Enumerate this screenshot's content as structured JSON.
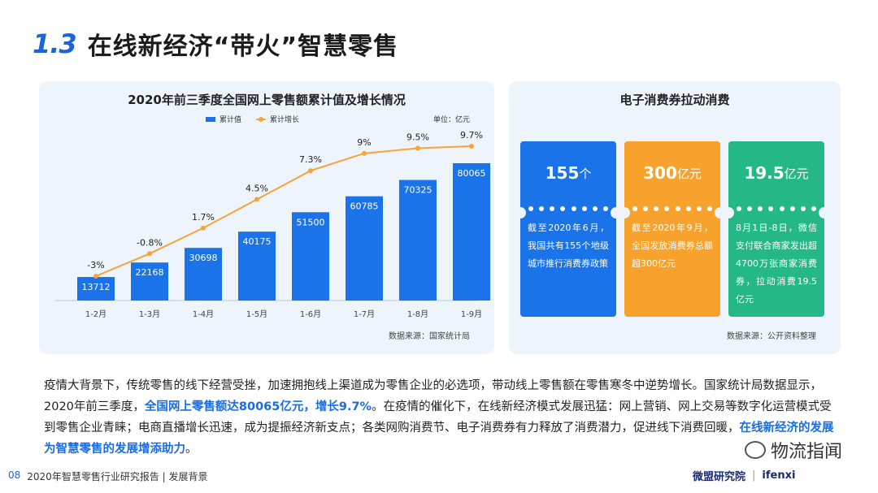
{
  "title": {
    "number": "1.3",
    "text": "在线新经济“带火”智慧零售"
  },
  "left_panel": {
    "title": "2020年前三季度全国网上零售额累计值及增长情况",
    "legend": [
      "累计值",
      "累计增长"
    ],
    "unit": "单位：亿元",
    "source": "数据来源：国家统计局"
  },
  "chart_data": {
    "type": "bar",
    "categories": [
      "1-2月",
      "1-3月",
      "1-4月",
      "1-5月",
      "1-6月",
      "1-7月",
      "1-8月",
      "1-9月"
    ],
    "series": [
      {
        "name": "累计值",
        "type": "bar",
        "values": [
          13712,
          22168,
          30698,
          40175,
          51500,
          60785,
          70325,
          80065
        ],
        "color": "#1a73e8"
      },
      {
        "name": "累计增长",
        "type": "line",
        "values": [
          -3,
          -0.8,
          1.7,
          4.5,
          7.3,
          9,
          9.5,
          9.7
        ],
        "labels": [
          "-3%",
          "-0.8%",
          "1.7%",
          "4.5%",
          "7.3%",
          "9%",
          "9.5%",
          "9.7%"
        ],
        "color": "#f5a33a"
      }
    ]
  },
  "right_panel": {
    "title": "电子消费券拉动消费",
    "cards": [
      {
        "value": "155",
        "unit": "个",
        "text": "截至2020年6月，我国共有155个地级城市推行消费券政策",
        "color": "#1a73e8"
      },
      {
        "value": "300",
        "unit": "亿元",
        "text": "截至2020年9月，全国发放消费券总额超300亿元",
        "color": "#f7a22c"
      },
      {
        "value": "19.5",
        "unit": "亿元",
        "text": "8月1日-8日，微信支付联合商家发出超4700万张商家消费券，拉动消费19.5亿元",
        "color": "#25b887"
      }
    ],
    "source": "数据来源：公开资料整理"
  },
  "paragraph": {
    "p1": "疫情大背景下，传统零售的线下经营受挫，加速拥抱线上渠道成为零售企业的必选项，带动线上零售额在零售寒冬中逆势增长。国家统计局数据显示，2020年前三季度，",
    "hl1": "全国网上零售额达80065亿元，增长9.7%",
    "p2": "。在疫情的催化下，在线新经济模式发展迅猛：网上营销、网上交易等数字化运营模式受到零售企业青睐；电商直播增长迅速，成为提振经济新支点；各类网购消费节、电子消费券有力释放了消费潜力，促进线下消费回暖，",
    "hl2": "在线新经济的发展为智慧零售的发展增添助力",
    "p3": "。"
  },
  "footer": {
    "page": "08",
    "text": "2020年智慧零售行业研究报告 | 发展背景"
  },
  "brand": {
    "name": "微盟研究院",
    "partner": "ifenxi"
  },
  "watermark": "物流指闻"
}
